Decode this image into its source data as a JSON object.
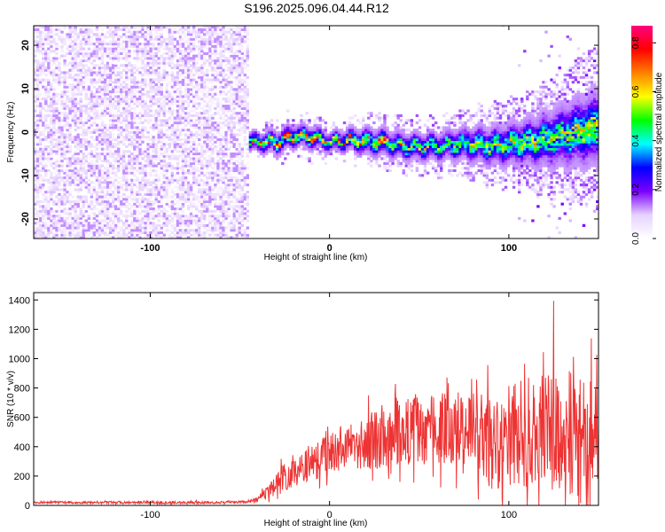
{
  "title": "S196.2025.096.04.44.R12",
  "chart_data": [
    {
      "type": "heatmap",
      "title": "",
      "xlabel": "Height of straight line (km)",
      "ylabel": "Frequency (Hz)",
      "xlim": [
        -165,
        150
      ],
      "ylim": [
        -24.5,
        24.5
      ],
      "xticks": [
        -100,
        0,
        100
      ],
      "yticks": [
        -20,
        -10,
        0,
        10,
        20
      ],
      "colorbar": {
        "label": "Normalized spectral amplitude",
        "range": [
          0.0,
          0.87
        ],
        "ticks": [
          0.0,
          0.2,
          0.4,
          0.6,
          0.8
        ],
        "tick_labels": [
          "0.0",
          "0.2",
          "0.4",
          "0.6",
          "0.8"
        ],
        "colormap": [
          "#ffffff",
          "#e6d2ff",
          "#7a00ff",
          "#0000ff",
          "#00ffff",
          "#00ff00",
          "#ffff00",
          "#ff8000",
          "#ff0000",
          "#ff0080"
        ]
      },
      "regions": [
        {
          "name": "noise",
          "x_range": [
            -165,
            -45
          ],
          "freq_range": [
            -24.5,
            24.5
          ],
          "amplitude": 0.08
        },
        {
          "name": "gap",
          "x_range": [
            -45,
            150
          ],
          "freq_range": [
            -24.5,
            24.5
          ],
          "amplitude": 0.0
        },
        {
          "name": "signal-band",
          "x_range": [
            -45,
            150
          ],
          "amplitude_peak": 0.85
        }
      ],
      "signal_center": {
        "x": [
          -45,
          -30,
          -20,
          -10,
          0,
          10,
          20,
          30,
          40,
          50,
          60,
          70,
          80,
          90,
          100,
          110,
          120,
          130,
          140,
          150
        ],
        "freq": [
          -2.5,
          -2.5,
          -1.0,
          -1.5,
          -2.5,
          -2.0,
          -2.5,
          -2.5,
          -3.5,
          -3.5,
          -3.5,
          -3.0,
          -3.0,
          -3.5,
          -3.0,
          -2.5,
          -2.0,
          -1.0,
          0.0,
          1.0
        ],
        "halfwidth": [
          2.5,
          3.0,
          3.0,
          3.0,
          2.5,
          3.0,
          3.5,
          3.5,
          3.5,
          3.5,
          3.5,
          4.0,
          4.5,
          5.0,
          5.5,
          6.0,
          7.0,
          8.0,
          9.0,
          10.0
        ]
      }
    },
    {
      "type": "line",
      "title": "",
      "xlabel": "Height of straight line (km)",
      "ylabel": "SNR (10 * v/v)",
      "xlim": [
        -165,
        150
      ],
      "ylim": [
        0,
        1450
      ],
      "xticks": [
        -100,
        0,
        100
      ],
      "yticks": [
        0,
        200,
        400,
        600,
        800,
        1000,
        1200,
        1400
      ],
      "color": "#ee3333",
      "series": [
        {
          "name": "SNR",
          "x": [
            -165,
            -140,
            -120,
            -100,
            -80,
            -60,
            -45,
            -40,
            -35,
            -30,
            -25,
            -20,
            -15,
            -10,
            -5,
            0,
            10,
            20,
            30,
            40,
            50,
            60,
            70,
            80,
            90,
            100,
            110,
            120,
            130,
            140,
            150
          ],
          "y_mean": [
            20,
            20,
            20,
            20,
            20,
            20,
            25,
            40,
            90,
            150,
            200,
            230,
            260,
            290,
            320,
            350,
            390,
            420,
            470,
            510,
            520,
            520,
            500,
            470,
            450,
            460,
            480,
            480,
            430,
            380,
            350
          ],
          "y_spread": [
            10,
            10,
            10,
            10,
            10,
            10,
            10,
            20,
            60,
            100,
            120,
            140,
            140,
            160,
            170,
            180,
            200,
            240,
            280,
            300,
            300,
            300,
            340,
            380,
            420,
            450,
            520,
            560,
            600,
            650,
            600
          ],
          "y_peak": 1450
        }
      ]
    }
  ]
}
